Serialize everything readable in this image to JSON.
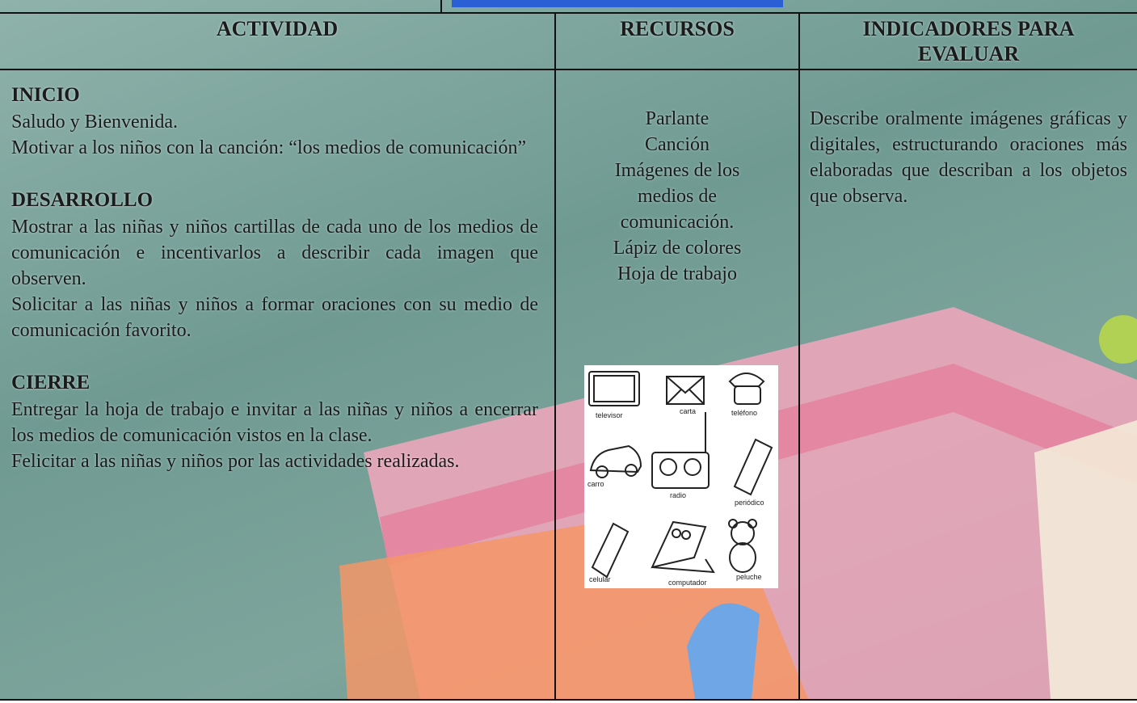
{
  "header": {
    "columns": [
      "ACTIVIDAD",
      "RECURSOS",
      "INDICADORES PARA EVALUAR"
    ]
  },
  "actividad": {
    "sections": [
      {
        "title": "INICIO",
        "paragraphs": [
          "Saludo y Bienvenida.",
          "Motivar a los niños con la canción: “los medios de comunicación”"
        ]
      },
      {
        "title": "DESARROLLO",
        "paragraphs": [
          "Mostrar a las niñas y niños cartillas de cada uno de los medios de comunicación e incentivarlos a describir cada imagen que observen.",
          "Solicitar a las niñas y niños a formar oraciones con su medio de comunicación favorito."
        ]
      },
      {
        "title": "CIERRE",
        "paragraphs": [
          "Entregar la hoja de trabajo e invitar a las niñas y niños a encerrar los medios de comunicación vistos en la clase.",
          "Felicitar a las niñas y niños por las actividades realizadas."
        ]
      }
    ]
  },
  "recursos": {
    "items": [
      "Parlante",
      "Canción",
      "Imágenes de los medios de comunicación.",
      "Lápiz de colores",
      "Hoja de trabajo"
    ],
    "image_labels": [
      "televisor",
      "carta",
      "teléfono",
      "carro",
      "radio",
      "periódico",
      "celular",
      "computador",
      "peluche"
    ]
  },
  "indicadores": {
    "text": "Describe oralmente imágenes gráficas y digitales, estructurando oraciones más elaboradas que describan a los objetos que observa."
  }
}
